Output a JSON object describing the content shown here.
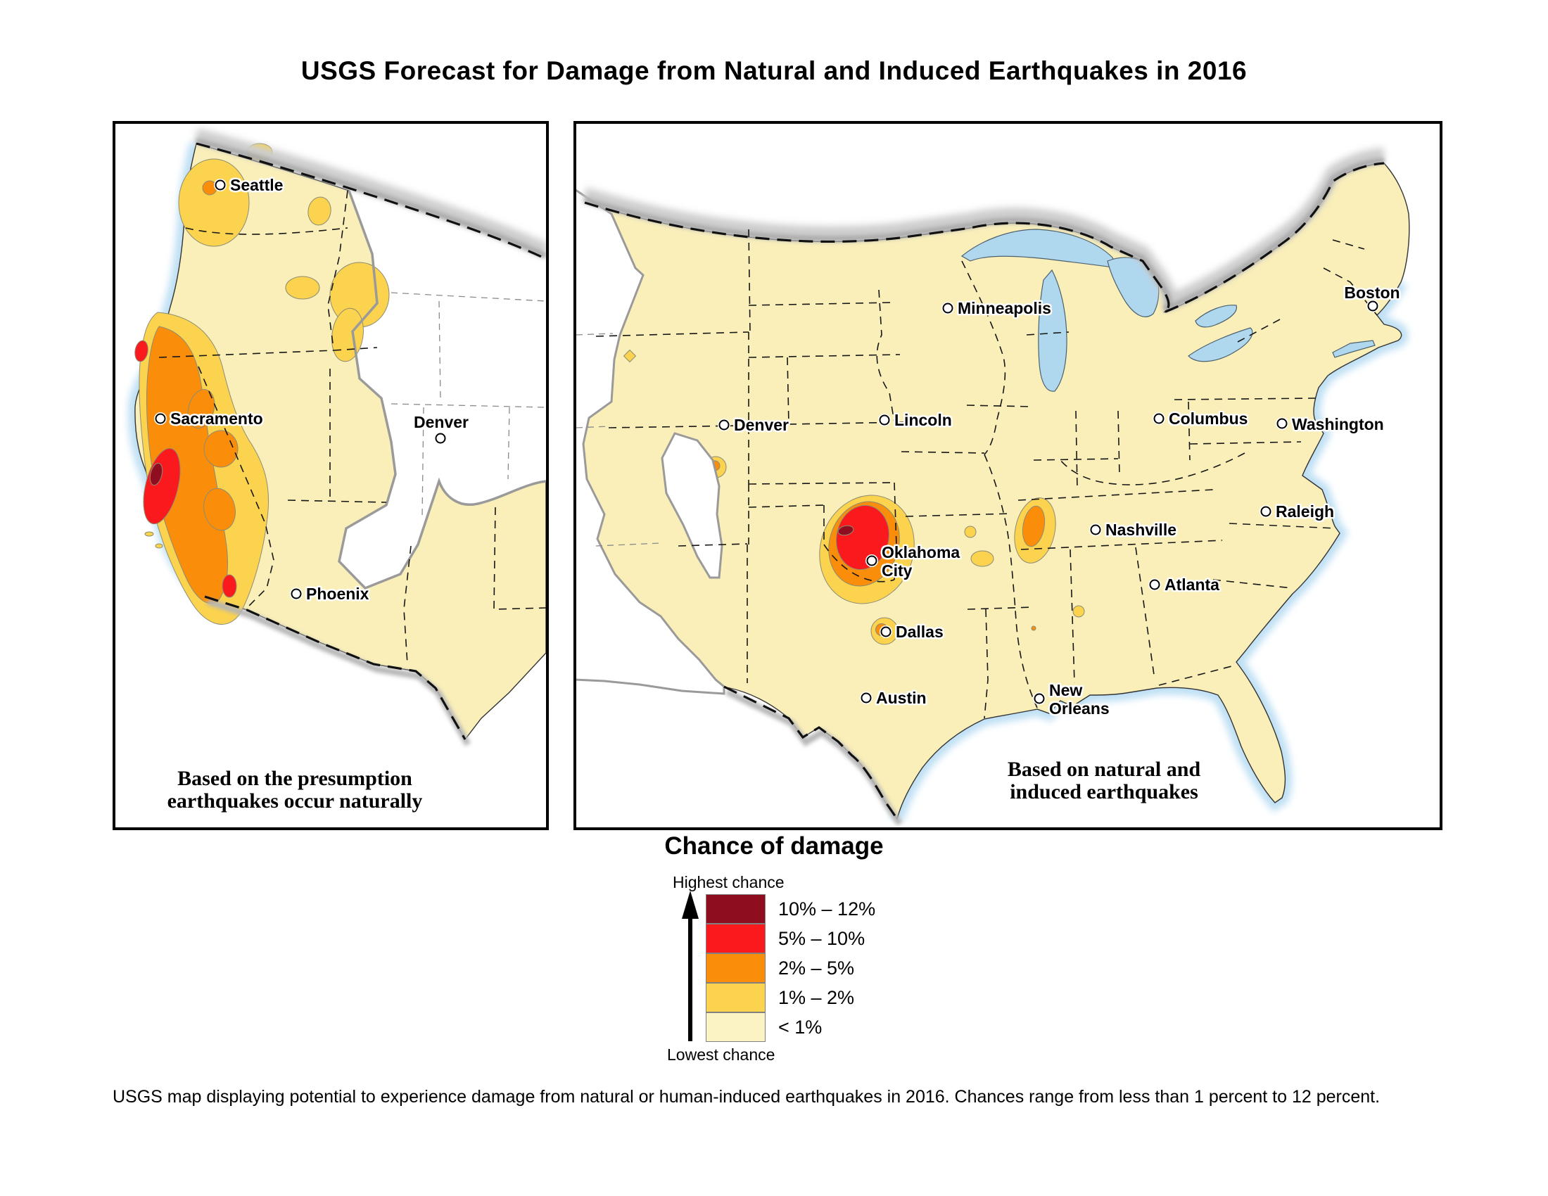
{
  "title": "USGS Forecast for Damage from Natural and Induced Earthquakes in 2016",
  "figure_caption": "USGS map displaying potential to experience damage from natural or human-induced earthquakes in 2016. Chances range from less than 1 percent to 12 percent.",
  "legend": {
    "title": "Chance of damage",
    "highest_label": "Highest chance",
    "lowest_label": "Lowest chance",
    "items": [
      {
        "label": "10% – 12%",
        "color": "#8E0E20"
      },
      {
        "label": "5% – 10%",
        "color": "#FA1A1E"
      },
      {
        "label": "2% – 5%",
        "color": "#FA8E0A"
      },
      {
        "label": "1% – 2%",
        "color": "#FBD34E"
      },
      {
        "label": "< 1%",
        "color": "#FCF3C5"
      }
    ]
  },
  "colors": {
    "land": "#FAEFB9",
    "water": "#AFD7EE",
    "no_data": "#FFFFFF",
    "dark_red": "#8E0E20",
    "red": "#FA1A1E",
    "orange": "#FA8E0A",
    "yellow": "#FBD34E",
    "pale_yellow": "#FCF3C5"
  },
  "left_map": {
    "caption_line1": "Based on the presumption",
    "caption_line2": "earthquakes occur naturally",
    "hazard_zones": [
      {
        "area": "coastal California",
        "max_level": "10% – 12%"
      },
      {
        "area": "Seattle / Puget Sound",
        "max_level": "2% – 5%"
      },
      {
        "area": "intermountain west spots",
        "max_level": "1% – 2%"
      }
    ],
    "cities": [
      {
        "name": "Seattle",
        "marker": [
          149,
          87
        ],
        "label": [
          163,
          87
        ],
        "align": "left"
      },
      {
        "name": "Sacramento",
        "marker": [
          64,
          419
        ],
        "label": [
          78,
          419
        ],
        "align": "left"
      },
      {
        "name": "Denver",
        "marker": [
          462,
          447
        ],
        "label": [
          463,
          424
        ],
        "align": "center"
      },
      {
        "name": "Phoenix",
        "marker": [
          257,
          668
        ],
        "label": [
          271,
          668
        ],
        "align": "left"
      }
    ]
  },
  "right_map": {
    "caption_line1": "Based on natural and",
    "caption_line2": "induced earthquakes",
    "hazard_zones": [
      {
        "area": "central Oklahoma near Oklahoma City",
        "max_level": "10% – 12%"
      },
      {
        "area": "New Madrid zone",
        "max_level": "2% – 5%"
      },
      {
        "area": "Dallas",
        "max_level": "2% – 5%"
      },
      {
        "area": "southwest Colorado",
        "max_level": "2% – 5%"
      }
    ],
    "cities": [
      {
        "name": "Minneapolis",
        "marker": [
          528,
          262
        ],
        "label": [
          542,
          262
        ],
        "align": "left"
      },
      {
        "name": "Lincoln",
        "marker": [
          438,
          421
        ],
        "label": [
          452,
          421
        ],
        "align": "left"
      },
      {
        "name": "Denver",
        "marker": [
          210,
          428
        ],
        "label": [
          224,
          428
        ],
        "align": "left"
      },
      {
        "name": "Columbus",
        "marker": [
          828,
          419
        ],
        "label": [
          842,
          419
        ],
        "align": "left"
      },
      {
        "name": "Washington",
        "marker": [
          1003,
          426
        ],
        "label": [
          1017,
          427
        ],
        "align": "left"
      },
      {
        "name": "Boston",
        "marker": [
          1132,
          259
        ],
        "label": [
          1131,
          240
        ],
        "align": "center"
      },
      {
        "name": "Raleigh",
        "marker": [
          980,
          551
        ],
        "label": [
          994,
          551
        ],
        "align": "left"
      },
      {
        "name": "Nashville",
        "marker": [
          738,
          577
        ],
        "label": [
          752,
          577
        ],
        "align": "left"
      },
      {
        "name": "Atlanta",
        "marker": [
          822,
          655
        ],
        "label": [
          836,
          655
        ],
        "align": "left"
      },
      {
        "name": "Oklahoma\nCity",
        "marker": [
          420,
          621
        ],
        "label": [
          434,
          622
        ],
        "align": "left"
      },
      {
        "name": "Dallas",
        "marker": [
          440,
          722
        ],
        "label": [
          454,
          722
        ],
        "align": "left"
      },
      {
        "name": "Austin",
        "marker": [
          412,
          816
        ],
        "label": [
          426,
          816
        ],
        "align": "left"
      },
      {
        "name": "New\nOrleans",
        "marker": [
          658,
          817
        ],
        "label": [
          672,
          818
        ],
        "align": "left"
      }
    ]
  }
}
